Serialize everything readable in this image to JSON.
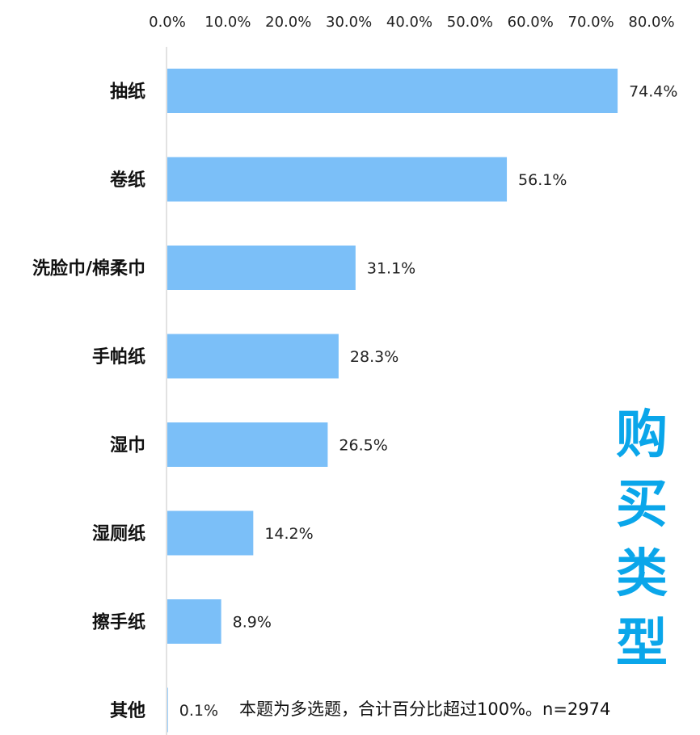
{
  "chart_data": {
    "type": "bar",
    "orientation": "horizontal",
    "categories": [
      "抽纸",
      "卷纸",
      "洗脸巾/棉柔巾",
      "手帕纸",
      "湿巾",
      "湿厕纸",
      "擦手纸",
      "其他"
    ],
    "values": [
      74.4,
      56.1,
      31.1,
      28.3,
      26.5,
      14.2,
      8.9,
      0.1
    ],
    "value_labels": [
      "74.4%",
      "56.1%",
      "31.1%",
      "28.3%",
      "26.5%",
      "14.2%",
      "8.9%",
      "0.1%"
    ],
    "xlim": [
      0,
      80
    ],
    "x_ticks": [
      "0.0%",
      "10.0%",
      "20.0%",
      "30.0%",
      "40.0%",
      "50.0%",
      "60.0%",
      "70.0%",
      "80.0%"
    ],
    "x_axis_position": "top",
    "grid": false,
    "bar_color": "#7bbff8"
  },
  "side_title": [
    "购",
    "买",
    "类",
    "型"
  ],
  "side_title_color": "#0aa6ea",
  "note": "本题为多选题，合计百分比超过100%。n=2974"
}
